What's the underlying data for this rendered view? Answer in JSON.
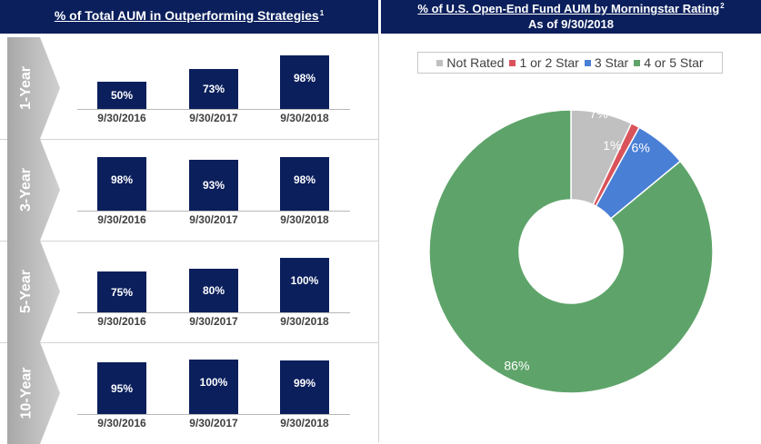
{
  "left_header": {
    "title": "% of Total AUM in Outperforming Strategies",
    "footnote": "1"
  },
  "right_header": {
    "title": "% of U.S. Open-End Fund AUM by Morningstar Rating",
    "footnote": "2",
    "subtitle": "As of 9/30/2018"
  },
  "chart_data": [
    {
      "type": "bar",
      "title": "1-Year",
      "categories": [
        "9/30/2016",
        "9/30/2017",
        "9/30/2018"
      ],
      "values": [
        50,
        73,
        98
      ],
      "labels": [
        "50%",
        "73%",
        "98%"
      ],
      "ylim": [
        0,
        100
      ]
    },
    {
      "type": "bar",
      "title": "3-Year",
      "categories": [
        "9/30/2016",
        "9/30/2017",
        "9/30/2018"
      ],
      "values": [
        98,
        93,
        98
      ],
      "labels": [
        "98%",
        "93%",
        "98%"
      ],
      "ylim": [
        0,
        100
      ]
    },
    {
      "type": "bar",
      "title": "5-Year",
      "categories": [
        "9/30/2016",
        "9/30/2017",
        "9/30/2018"
      ],
      "values": [
        75,
        80,
        100
      ],
      "labels": [
        "75%",
        "80%",
        "100%"
      ],
      "ylim": [
        0,
        100
      ]
    },
    {
      "type": "bar",
      "title": "10-Year",
      "categories": [
        "9/30/2016",
        "9/30/2017",
        "9/30/2018"
      ],
      "values": [
        95,
        100,
        99
      ],
      "labels": [
        "95%",
        "100%",
        "99%"
      ],
      "ylim": [
        0,
        100
      ]
    },
    {
      "type": "pie",
      "title": "% of U.S. Open-End Fund AUM by Morningstar Rating",
      "subtitle": "As of 9/30/2018",
      "donut": true,
      "slices": [
        {
          "name": "Not Rated",
          "value": 7,
          "label": "7%",
          "color": "#c0c0c0"
        },
        {
          "name": "1 or 2 Star",
          "value": 1,
          "label": "1%",
          "color": "#d9535a"
        },
        {
          "name": "3 Star",
          "value": 6,
          "label": "6%",
          "color": "#4a7fd6"
        },
        {
          "name": "4 or 5 Star",
          "value": 86,
          "label": "86%",
          "color": "#5ea46a"
        }
      ]
    }
  ]
}
